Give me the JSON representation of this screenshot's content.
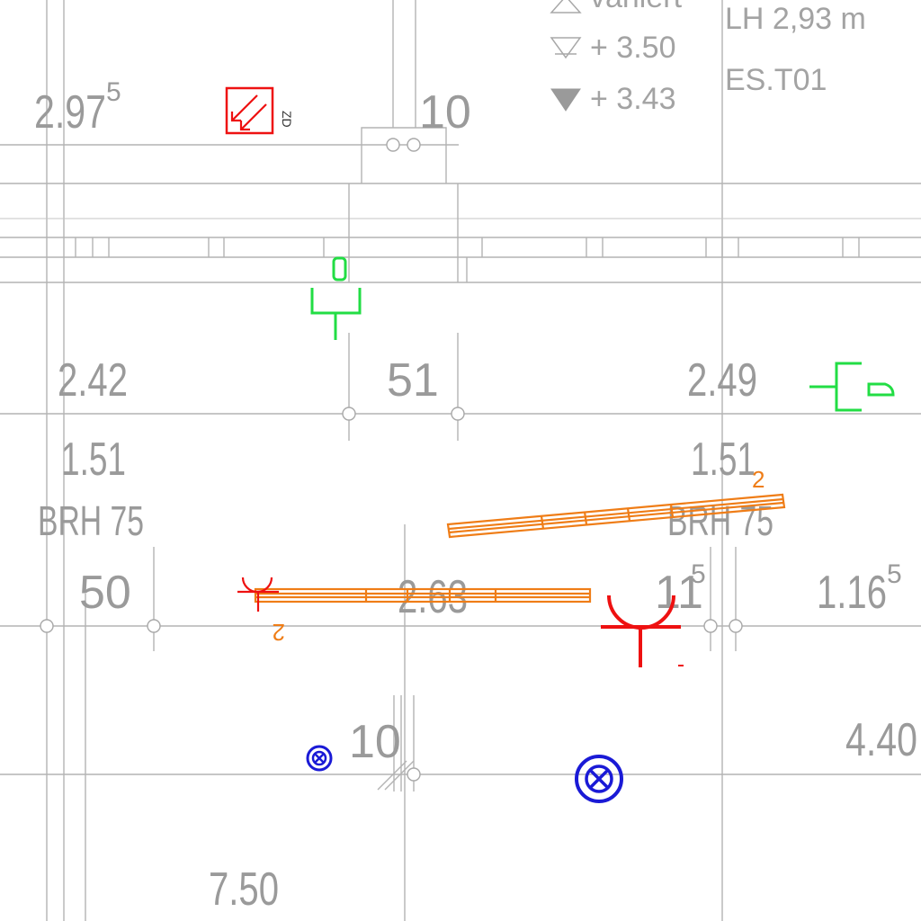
{
  "legend": {
    "level_variiert": "variiert",
    "level_raw": "+ 3.50",
    "level_finished": "+ 3.43"
  },
  "room": {
    "height": "LH 2,93 m",
    "code": "ES.T01"
  },
  "dimensions": {
    "d_297_main": "2.97",
    "d_297_sup": "5",
    "d_10_top": "10",
    "d_242": "2.42",
    "d_51": "51",
    "d_249": "2.49",
    "d_151_left": "1.51",
    "d_151_right": "1.51",
    "brh_left": "BRH 75",
    "brh_right": "BRH 75",
    "d_50": "50",
    "d_263": "2.63",
    "d_11_main": "11",
    "d_11_sup": "5",
    "d_116_main": "1.16",
    "d_116_sup": "5",
    "d_10_bottom": "10",
    "d_440": "4.40",
    "d_750": "7.50"
  },
  "symbols": {
    "fire_damper_tag": "ZD",
    "radiator_tag_right": "2",
    "radiator_tag_left": "2",
    "colors": {
      "fire": "#ee1111",
      "electrical": "#22dd44",
      "heating": "#ef7d17",
      "drain": "#1a1ad6",
      "grid": "#b3b3b3"
    }
  }
}
